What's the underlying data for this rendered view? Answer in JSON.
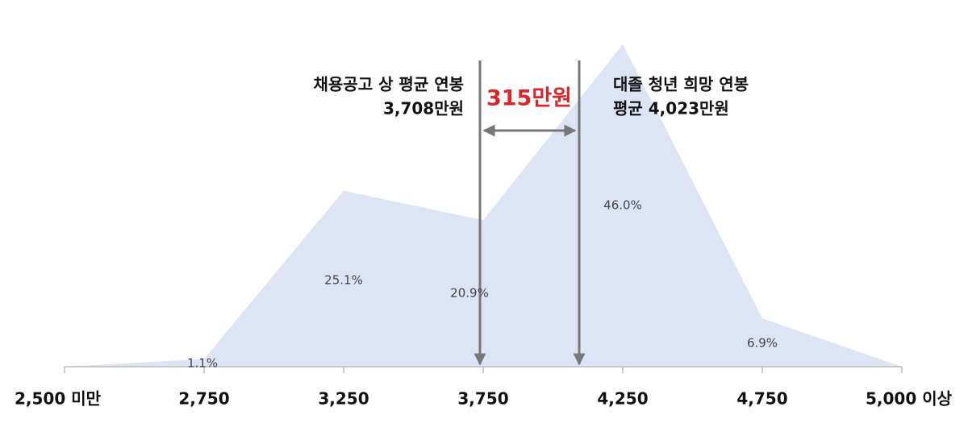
{
  "chart_data": {
    "type": "area",
    "categories": [
      "2,500 미만",
      "2,750",
      "3,250",
      "3,750",
      "4,250",
      "4,750",
      "5,000 이상"
    ],
    "values": [
      0,
      1.1,
      25.1,
      20.9,
      46.0,
      6.9,
      0
    ],
    "value_labels": [
      null,
      "1.1%",
      "25.1%",
      "20.9%",
      "46.0%",
      "6.9%",
      null
    ],
    "color": "#dde4f4",
    "annotations": {
      "left": [
        "채용공고 상 평균 연봉",
        "3,708만원"
      ],
      "right": [
        "대졸 청년 희망 연봉",
        "평균 4,023만원"
      ],
      "gap": "315만원"
    }
  }
}
